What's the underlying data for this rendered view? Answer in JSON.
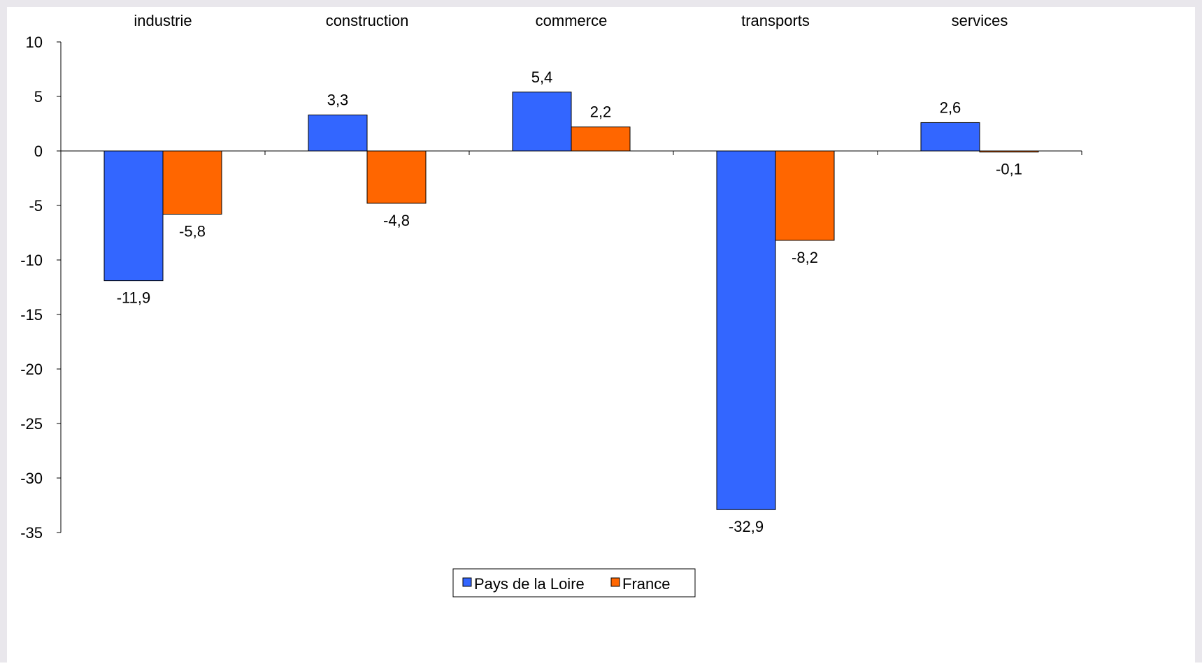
{
  "chart_data": {
    "type": "bar",
    "categories": [
      "industrie",
      "construction",
      "commerce",
      "transports",
      "services"
    ],
    "series": [
      {
        "name": "Pays de la Loire",
        "color": "#3366ff",
        "values": [
          -11.9,
          3.3,
          5.4,
          -32.9,
          2.6
        ],
        "labels": [
          "-11,9",
          "3,3",
          "5,4",
          "-32,9",
          "2,6"
        ]
      },
      {
        "name": "France",
        "color": "#ff6600",
        "values": [
          -5.8,
          -4.8,
          2.2,
          -8.2,
          -0.1
        ],
        "labels": [
          "-5,8",
          "-4,8",
          "2,2",
          "-8,2",
          "-0,1"
        ]
      }
    ],
    "ylim": [
      -35,
      10
    ],
    "yticks": [
      10,
      5,
      0,
      -5,
      -10,
      -15,
      -20,
      -25,
      -30,
      -35
    ],
    "category_labels_position": "top",
    "grid": false,
    "legend_position": "bottom-center"
  }
}
